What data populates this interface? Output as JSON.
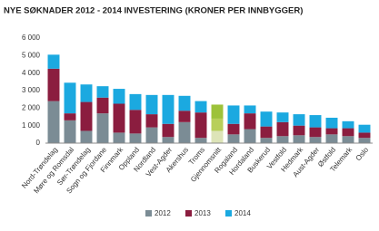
{
  "chart_data": {
    "type": "stacked_bar",
    "title": "NYE SØKNADER 2012 - 2014 INVESTERING (KRONER PER INNBYGGER)",
    "categories": [
      "Nord-Trøndelag",
      "Møre og Romsdal",
      "Sør-Trøndelag",
      "Sogn og Fjordane",
      "Finnmark",
      "Oppland",
      "Nordland",
      "Vest-Agder",
      "Akershus",
      "Troms",
      "Gjennomsnitt",
      "Rogaland",
      "Hordaland",
      "Buskerud",
      "Vestfold",
      "Hedmark",
      "Aust-Agder",
      "Østfold",
      "Telemark",
      "Oslo"
    ],
    "series": [
      {
        "name": "2012",
        "color": "#7b8c95",
        "values": [
          2400,
          1300,
          700,
          1700,
          600,
          550,
          900,
          350,
          1200,
          300,
          700,
          500,
          800,
          300,
          400,
          450,
          350,
          500,
          400,
          300
        ]
      },
      {
        "name": "2013",
        "color": "#8b1d3f",
        "values": [
          1850,
          400,
          1650,
          900,
          1650,
          1350,
          750,
          750,
          650,
          1450,
          700,
          600,
          900,
          650,
          800,
          550,
          550,
          350,
          450,
          300
        ]
      },
      {
        "name": "2014",
        "color": "#1ba9e0",
        "values": [
          800,
          1750,
          1000,
          650,
          850,
          900,
          1100,
          1650,
          850,
          650,
          800,
          1050,
          450,
          850,
          550,
          650,
          700,
          600,
          400,
          450
        ]
      }
    ],
    "highlight": {
      "category": "Gjennomsnitt",
      "colors": [
        "#dde4b8",
        "#b8cf5a",
        "#9dc23a"
      ]
    },
    "ylim": [
      0,
      6000
    ],
    "yticks": [
      0,
      {
        "value": 1000,
        "label": "1 000"
      },
      {
        "value": 2000,
        "label": "2 000"
      },
      {
        "value": 3000,
        "label": "3 000"
      },
      {
        "value": 4000,
        "label": "4 000"
      },
      {
        "value": 5000,
        "label": "5 000"
      },
      {
        "value": 6000,
        "label": "6 000"
      }
    ],
    "grid": false
  }
}
